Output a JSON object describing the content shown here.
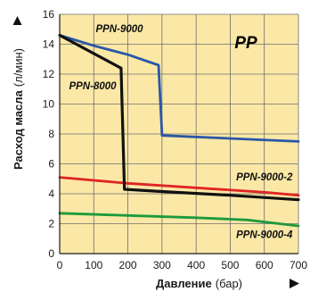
{
  "chart_data": {
    "type": "line",
    "badge": "PP",
    "xlabel": "Давление",
    "xunit": "(бар)",
    "ylabel": "Расход масла",
    "yunit": "(л/мин)",
    "xlim": [
      0,
      700
    ],
    "ylim": [
      0,
      16
    ],
    "xticks": [
      0,
      100,
      200,
      300,
      400,
      500,
      600,
      700
    ],
    "yticks": [
      0,
      2,
      4,
      6,
      8,
      10,
      12,
      14,
      16
    ],
    "grid": true,
    "colors": {
      "plot_bg": "#fbe8a6",
      "grid": "#6e6e6e",
      "axis": "#1a1a1a",
      "arrow": "#111111"
    },
    "series": [
      {
        "name": "PPN-9000",
        "color": "#2a56a8",
        "x": [
          0,
          100,
          200,
          290,
          300,
          700
        ],
        "y": [
          14.6,
          13.9,
          13.3,
          12.6,
          7.9,
          7.5
        ]
      },
      {
        "name": "PPN-8000",
        "color": "#111111",
        "x": [
          0,
          180,
          190,
          300,
          500,
          700
        ],
        "y": [
          14.6,
          12.4,
          4.3,
          4.15,
          3.9,
          3.6
        ]
      },
      {
        "name": "PPN-9000-2",
        "color": "#e02525",
        "x": [
          0,
          200,
          400,
          600,
          700
        ],
        "y": [
          5.1,
          4.7,
          4.4,
          4.1,
          3.9
        ]
      },
      {
        "name": "PPN-9000-4",
        "color": "#1e9a3c",
        "x": [
          0,
          200,
          400,
          550,
          700
        ],
        "y": [
          2.7,
          2.55,
          2.4,
          2.25,
          1.85
        ]
      }
    ]
  }
}
